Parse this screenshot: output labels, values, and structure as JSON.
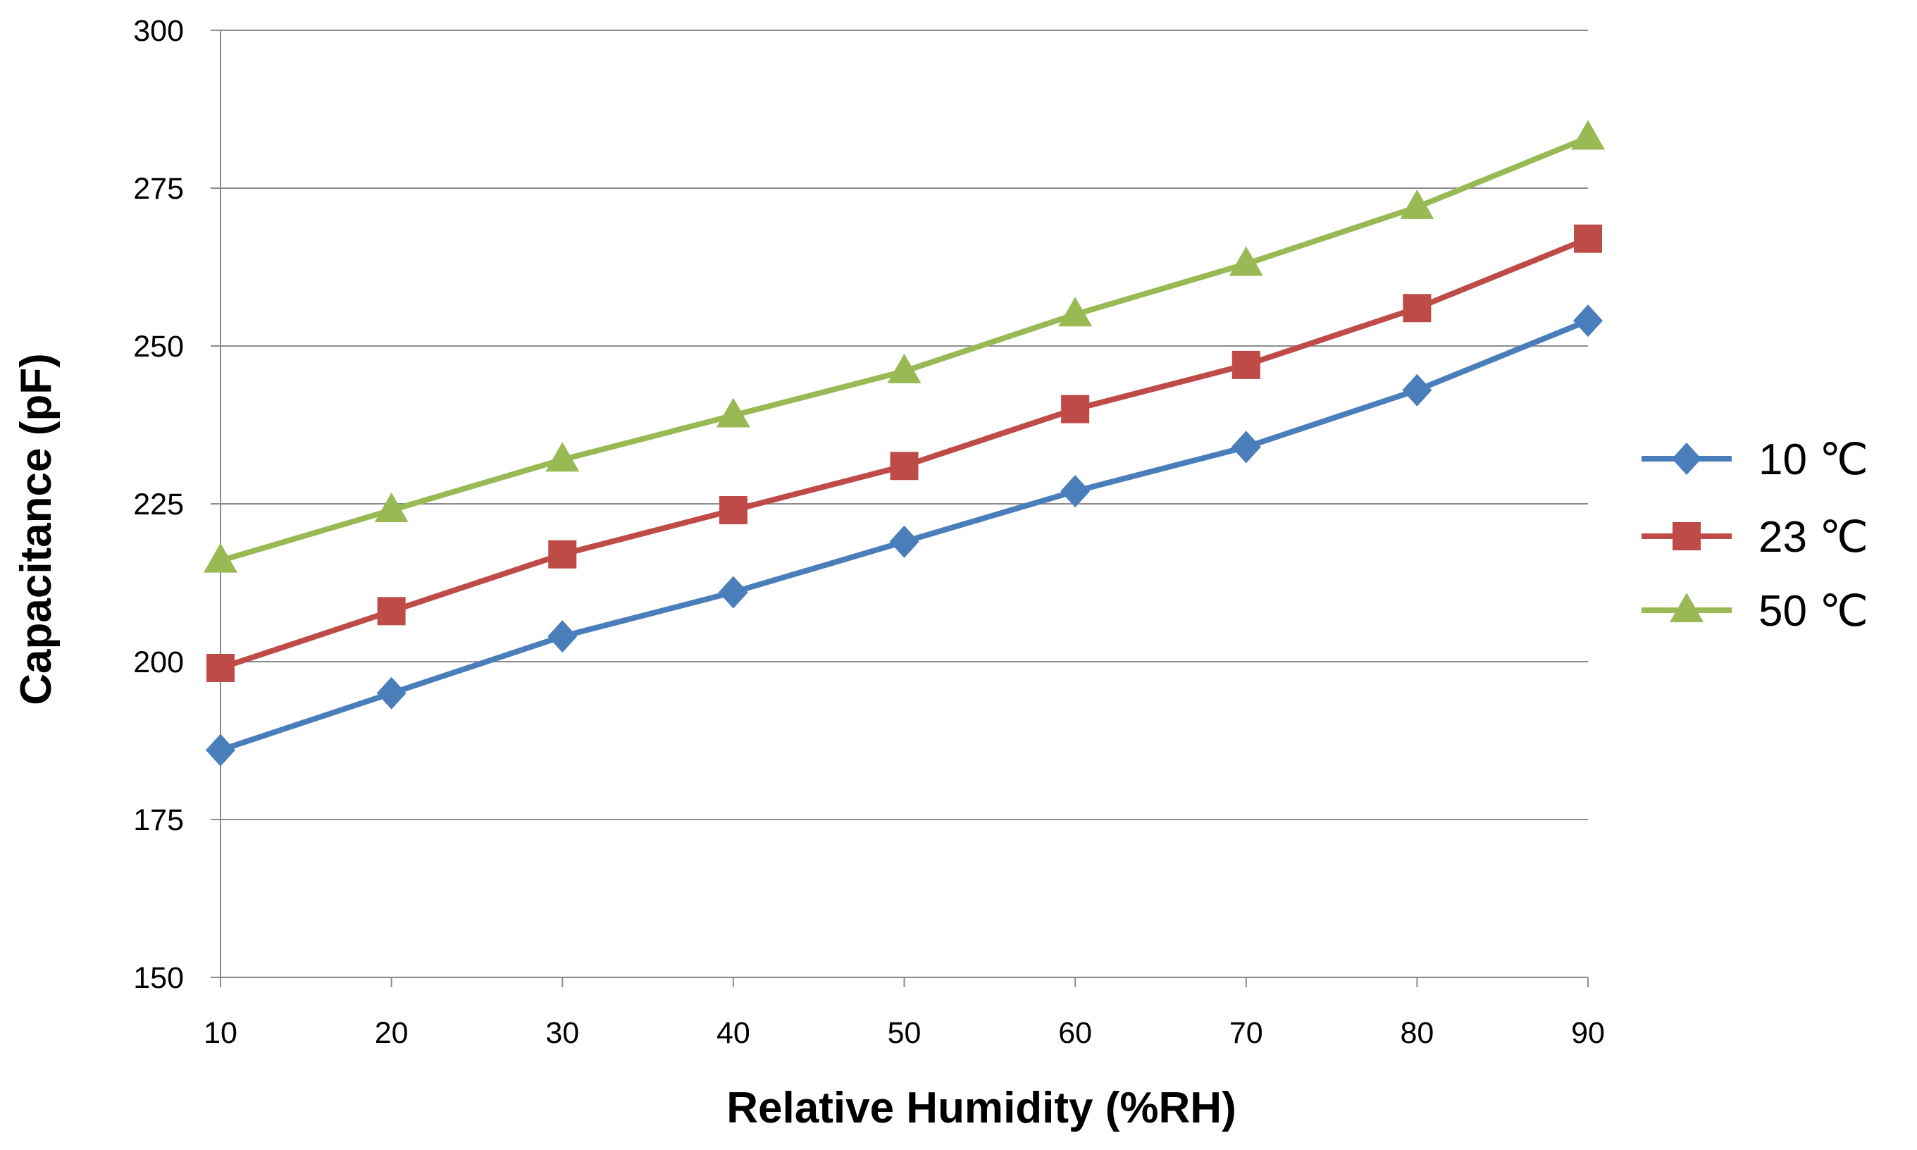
{
  "chart_data": {
    "type": "line",
    "title": "",
    "xlabel": "Relative Humidity (%RH)",
    "ylabel": "Capacitance (pF)",
    "x": [
      10,
      20,
      30,
      40,
      50,
      60,
      70,
      80,
      90
    ],
    "x_tick_labels": [
      "10",
      "20",
      "30",
      "40",
      "50",
      "60",
      "70",
      "80",
      "90"
    ],
    "xlim": [
      10,
      90
    ],
    "ylim": [
      150,
      300
    ],
    "y_ticks": [
      150,
      175,
      200,
      225,
      250,
      275,
      300
    ],
    "y_tick_labels": [
      "150",
      "175",
      "200",
      "225",
      "250",
      "275",
      "300"
    ],
    "grid": "horizontal",
    "legend_position": "right",
    "series": [
      {
        "name": "10 ℃",
        "marker": "diamond",
        "color": "#4A7EBB",
        "values": [
          186,
          195,
          204,
          211,
          219,
          227,
          234,
          243,
          254
        ]
      },
      {
        "name": "23 ℃",
        "marker": "square",
        "color": "#BE4B48",
        "values": [
          199,
          208,
          217,
          224,
          231,
          240,
          247,
          256,
          267
        ]
      },
      {
        "name": "50 ℃",
        "marker": "triangle",
        "color": "#98B954",
        "values": [
          216,
          224,
          232,
          239,
          246,
          255,
          263,
          272,
          283
        ]
      }
    ]
  }
}
